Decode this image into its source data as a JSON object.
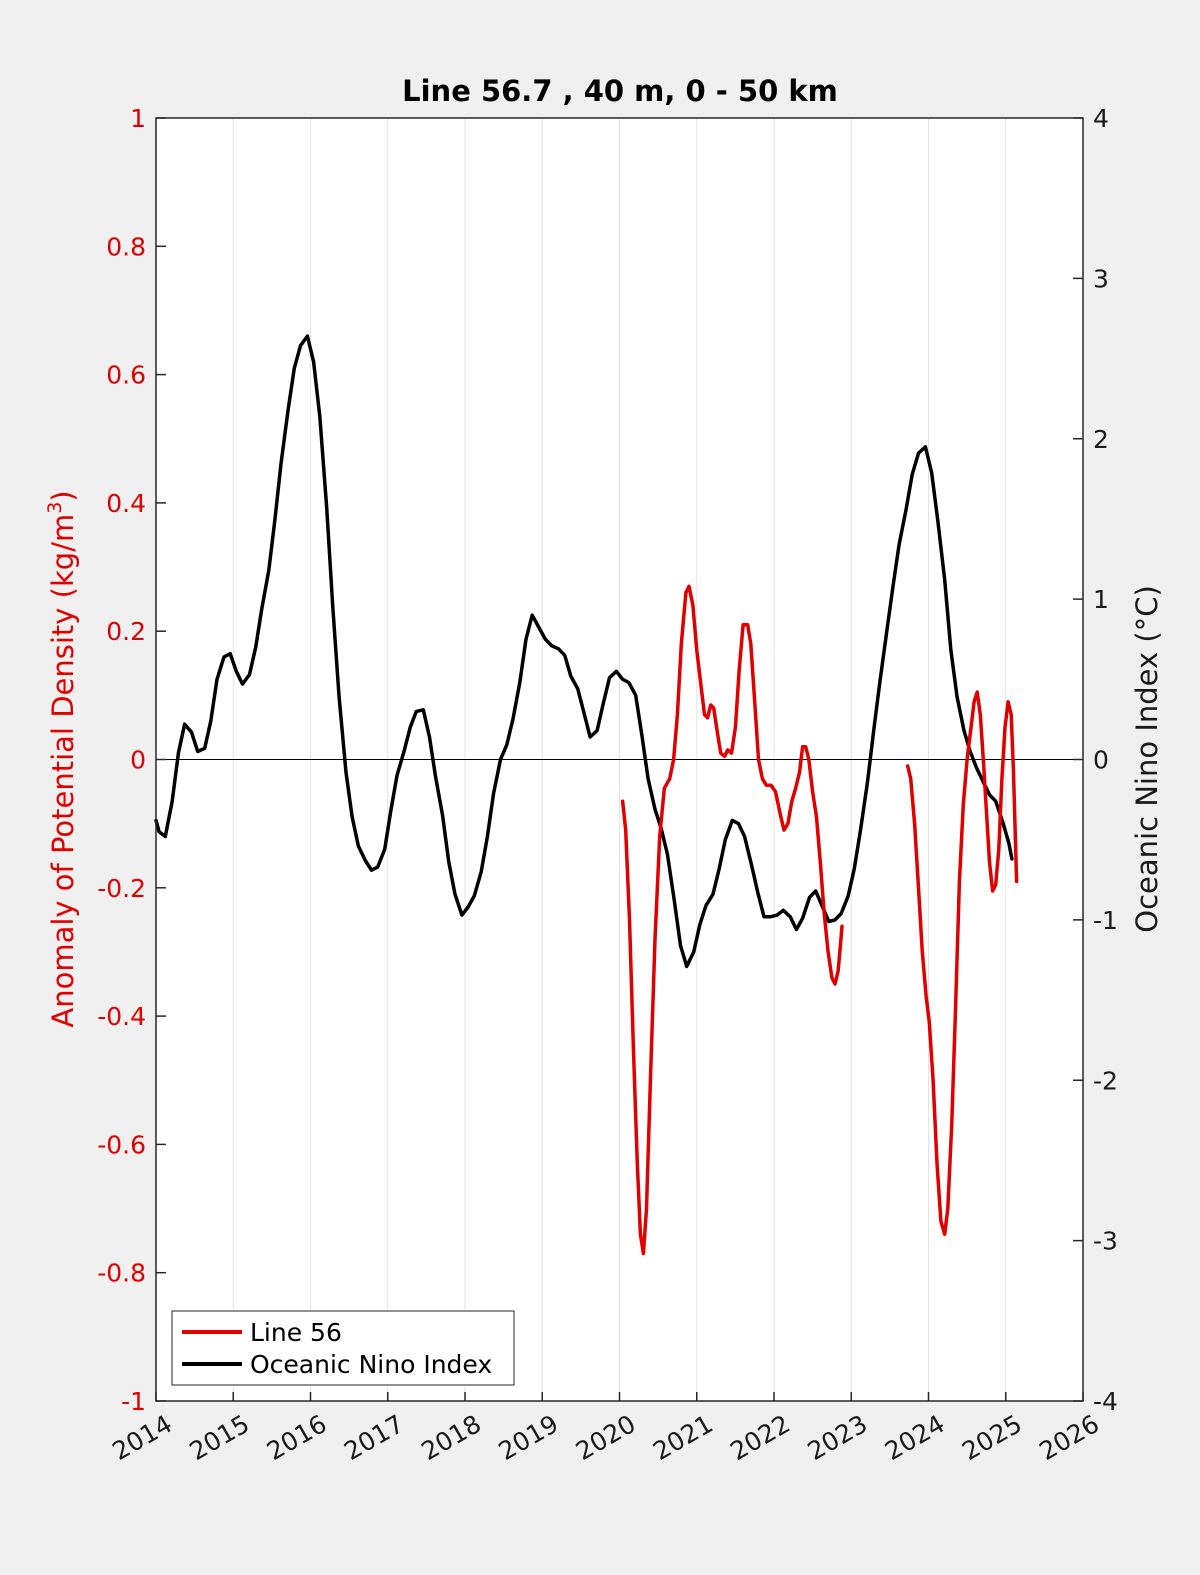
{
  "chart_data": {
    "type": "line",
    "title": "Line 56.7 , 40 m, 0 - 50 km",
    "ylabel": "Anomaly of Potential Density (kg/m",
    "ylabel_sup": "3",
    "ylabel_close": ")",
    "y2label": "Oceanic Nino Index (°C)",
    "xlim": [
      2014,
      2026
    ],
    "ylim": [
      -1,
      1
    ],
    "y2lim": [
      -4,
      4
    ],
    "grid": "vertical",
    "legend_position": "bottom-left",
    "x_ticks": [
      "2014",
      "2015",
      "2016",
      "2017",
      "2018",
      "2019",
      "2020",
      "2021",
      "2022",
      "2023",
      "2024",
      "2025",
      "2026"
    ],
    "y_ticks": [
      "-1",
      "-0.8",
      "-0.6",
      "-0.4",
      "-0.2",
      "0",
      "0.2",
      "0.4",
      "0.6",
      "0.8",
      "1"
    ],
    "y2_ticks": [
      "-4",
      "-3",
      "-2",
      "-1",
      "0",
      "1",
      "2",
      "3",
      "4"
    ],
    "colors": {
      "line56": "#e00000",
      "oni": "#000000"
    },
    "series": [
      {
        "name": "Line 56",
        "axis": "left",
        "segments": [
          [
            [
              2020.04,
              -0.065
            ],
            [
              2020.08,
              -0.11
            ],
            [
              2020.13,
              -0.25
            ],
            [
              2020.18,
              -0.45
            ],
            [
              2020.23,
              -0.63
            ],
            [
              2020.27,
              -0.74
            ],
            [
              2020.31,
              -0.77
            ],
            [
              2020.35,
              -0.7
            ],
            [
              2020.4,
              -0.5
            ],
            [
              2020.46,
              -0.28
            ],
            [
              2020.52,
              -0.12
            ],
            [
              2020.58,
              -0.045
            ],
            [
              2020.65,
              -0.03
            ],
            [
              2020.7,
              0.0
            ],
            [
              2020.75,
              0.07
            ],
            [
              2020.8,
              0.18
            ],
            [
              2020.86,
              0.26
            ],
            [
              2020.9,
              0.27
            ],
            [
              2020.95,
              0.24
            ],
            [
              2021.0,
              0.17
            ],
            [
              2021.05,
              0.12
            ],
            [
              2021.1,
              0.07
            ],
            [
              2021.14,
              0.065
            ],
            [
              2021.18,
              0.085
            ],
            [
              2021.22,
              0.08
            ],
            [
              2021.27,
              0.04
            ],
            [
              2021.31,
              0.01
            ],
            [
              2021.36,
              0.005
            ],
            [
              2021.4,
              0.015
            ],
            [
              2021.45,
              0.01
            ],
            [
              2021.5,
              0.05
            ],
            [
              2021.55,
              0.14
            ],
            [
              2021.6,
              0.21
            ],
            [
              2021.66,
              0.21
            ],
            [
              2021.7,
              0.18
            ],
            [
              2021.75,
              0.09
            ],
            [
              2021.8,
              0.0
            ],
            [
              2021.85,
              -0.03
            ],
            [
              2021.9,
              -0.04
            ],
            [
              2021.96,
              -0.04
            ],
            [
              2022.02,
              -0.05
            ],
            [
              2022.08,
              -0.085
            ],
            [
              2022.13,
              -0.11
            ],
            [
              2022.18,
              -0.1
            ],
            [
              2022.23,
              -0.065
            ],
            [
              2022.28,
              -0.045
            ],
            [
              2022.33,
              -0.02
            ],
            [
              2022.37,
              0.02
            ],
            [
              2022.41,
              0.02
            ],
            [
              2022.45,
              0.0
            ],
            [
              2022.5,
              -0.05
            ],
            [
              2022.55,
              -0.09
            ],
            [
              2022.6,
              -0.16
            ],
            [
              2022.65,
              -0.24
            ],
            [
              2022.7,
              -0.3
            ],
            [
              2022.75,
              -0.34
            ],
            [
              2022.79,
              -0.35
            ],
            [
              2022.83,
              -0.33
            ],
            [
              2022.86,
              -0.29
            ],
            [
              2022.88,
              -0.26
            ]
          ],
          [
            [
              2023.73,
              -0.01
            ],
            [
              2023.77,
              -0.03
            ],
            [
              2023.82,
              -0.1
            ],
            [
              2023.87,
              -0.2
            ],
            [
              2023.92,
              -0.3
            ],
            [
              2023.97,
              -0.37
            ],
            [
              2024.01,
              -0.41
            ],
            [
              2024.06,
              -0.5
            ],
            [
              2024.11,
              -0.63
            ],
            [
              2024.16,
              -0.72
            ],
            [
              2024.21,
              -0.74
            ],
            [
              2024.25,
              -0.7
            ],
            [
              2024.3,
              -0.57
            ],
            [
              2024.35,
              -0.39
            ],
            [
              2024.4,
              -0.19
            ],
            [
              2024.45,
              -0.07
            ],
            [
              2024.5,
              0.0
            ],
            [
              2024.55,
              0.05
            ],
            [
              2024.59,
              0.09
            ],
            [
              2024.63,
              0.105
            ],
            [
              2024.67,
              0.07
            ],
            [
              2024.71,
              0.0
            ],
            [
              2024.75,
              -0.08
            ],
            [
              2024.79,
              -0.16
            ],
            [
              2024.83,
              -0.205
            ],
            [
              2024.87,
              -0.195
            ],
            [
              2024.91,
              -0.14
            ],
            [
              2024.95,
              -0.03
            ],
            [
              2024.99,
              0.05
            ],
            [
              2025.03,
              0.09
            ],
            [
              2025.07,
              0.07
            ],
            [
              2025.1,
              -0.02
            ],
            [
              2025.14,
              -0.19
            ]
          ]
        ]
      },
      {
        "name": "Oceanic Nino Index",
        "axis": "right",
        "values": [
          [
            2014.0,
            -0.38
          ],
          [
            2014.04,
            -0.45
          ],
          [
            2014.12,
            -0.48
          ],
          [
            2014.21,
            -0.26
          ],
          [
            2014.29,
            0.04
          ],
          [
            2014.37,
            0.22
          ],
          [
            2014.46,
            0.17
          ],
          [
            2014.54,
            0.05
          ],
          [
            2014.63,
            0.07
          ],
          [
            2014.71,
            0.24
          ],
          [
            2014.79,
            0.5
          ],
          [
            2014.88,
            0.64
          ],
          [
            2014.96,
            0.66
          ],
          [
            2015.04,
            0.55
          ],
          [
            2015.12,
            0.47
          ],
          [
            2015.21,
            0.53
          ],
          [
            2015.29,
            0.7
          ],
          [
            2015.37,
            0.94
          ],
          [
            2015.46,
            1.18
          ],
          [
            2015.54,
            1.5
          ],
          [
            2015.62,
            1.85
          ],
          [
            2015.71,
            2.18
          ],
          [
            2015.79,
            2.44
          ],
          [
            2015.87,
            2.58
          ],
          [
            2015.96,
            2.64
          ],
          [
            2016.04,
            2.48
          ],
          [
            2016.12,
            2.14
          ],
          [
            2016.21,
            1.57
          ],
          [
            2016.29,
            0.94
          ],
          [
            2016.37,
            0.39
          ],
          [
            2016.46,
            -0.08
          ],
          [
            2016.54,
            -0.36
          ],
          [
            2016.62,
            -0.54
          ],
          [
            2016.71,
            -0.63
          ],
          [
            2016.79,
            -0.69
          ],
          [
            2016.87,
            -0.67
          ],
          [
            2016.96,
            -0.56
          ],
          [
            2017.04,
            -0.32
          ],
          [
            2017.12,
            -0.1
          ],
          [
            2017.21,
            0.05
          ],
          [
            2017.29,
            0.2
          ],
          [
            2017.37,
            0.3
          ],
          [
            2017.46,
            0.31
          ],
          [
            2017.54,
            0.14
          ],
          [
            2017.62,
            -0.11
          ],
          [
            2017.71,
            -0.35
          ],
          [
            2017.79,
            -0.64
          ],
          [
            2017.87,
            -0.84
          ],
          [
            2017.96,
            -0.97
          ],
          [
            2018.04,
            -0.92
          ],
          [
            2018.12,
            -0.85
          ],
          [
            2018.21,
            -0.7
          ],
          [
            2018.29,
            -0.48
          ],
          [
            2018.37,
            -0.21
          ],
          [
            2018.46,
            0.0
          ],
          [
            2018.54,
            0.09
          ],
          [
            2018.62,
            0.25
          ],
          [
            2018.71,
            0.48
          ],
          [
            2018.79,
            0.75
          ],
          [
            2018.87,
            0.9
          ],
          [
            2018.96,
            0.82
          ],
          [
            2019.04,
            0.75
          ],
          [
            2019.12,
            0.71
          ],
          [
            2019.21,
            0.69
          ],
          [
            2019.29,
            0.65
          ],
          [
            2019.37,
            0.52
          ],
          [
            2019.46,
            0.44
          ],
          [
            2019.54,
            0.29
          ],
          [
            2019.62,
            0.14
          ],
          [
            2019.71,
            0.18
          ],
          [
            2019.79,
            0.35
          ],
          [
            2019.87,
            0.51
          ],
          [
            2019.96,
            0.55
          ],
          [
            2020.04,
            0.5
          ],
          [
            2020.12,
            0.48
          ],
          [
            2020.21,
            0.4
          ],
          [
            2020.29,
            0.15
          ],
          [
            2020.37,
            -0.12
          ],
          [
            2020.46,
            -0.31
          ],
          [
            2020.54,
            -0.43
          ],
          [
            2020.62,
            -0.59
          ],
          [
            2020.71,
            -0.88
          ],
          [
            2020.79,
            -1.16
          ],
          [
            2020.87,
            -1.29
          ],
          [
            2020.96,
            -1.2
          ],
          [
            2021.04,
            -1.03
          ],
          [
            2021.12,
            -0.91
          ],
          [
            2021.21,
            -0.84
          ],
          [
            2021.29,
            -0.68
          ],
          [
            2021.37,
            -0.5
          ],
          [
            2021.46,
            -0.38
          ],
          [
            2021.54,
            -0.4
          ],
          [
            2021.62,
            -0.48
          ],
          [
            2021.71,
            -0.66
          ],
          [
            2021.79,
            -0.83
          ],
          [
            2021.87,
            -0.98
          ],
          [
            2021.96,
            -0.98
          ],
          [
            2022.04,
            -0.97
          ],
          [
            2022.12,
            -0.94
          ],
          [
            2022.21,
            -0.98
          ],
          [
            2022.29,
            -1.06
          ],
          [
            2022.37,
            -0.99
          ],
          [
            2022.46,
            -0.86
          ],
          [
            2022.54,
            -0.82
          ],
          [
            2022.62,
            -0.91
          ],
          [
            2022.71,
            -1.01
          ],
          [
            2022.79,
            -1.0
          ],
          [
            2022.87,
            -0.96
          ],
          [
            2022.96,
            -0.85
          ],
          [
            2023.04,
            -0.68
          ],
          [
            2023.12,
            -0.44
          ],
          [
            2023.21,
            -0.14
          ],
          [
            2023.29,
            0.18
          ],
          [
            2023.37,
            0.48
          ],
          [
            2023.46,
            0.8
          ],
          [
            2023.54,
            1.08
          ],
          [
            2023.62,
            1.34
          ],
          [
            2023.71,
            1.56
          ],
          [
            2023.79,
            1.78
          ],
          [
            2023.87,
            1.91
          ],
          [
            2023.96,
            1.95
          ],
          [
            2024.04,
            1.79
          ],
          [
            2024.12,
            1.49
          ],
          [
            2024.21,
            1.12
          ],
          [
            2024.29,
            0.68
          ],
          [
            2024.37,
            0.39
          ],
          [
            2024.46,
            0.18
          ],
          [
            2024.54,
            0.05
          ],
          [
            2024.62,
            -0.05
          ],
          [
            2024.71,
            -0.14
          ],
          [
            2024.79,
            -0.22
          ],
          [
            2024.87,
            -0.26
          ],
          [
            2024.96,
            -0.39
          ],
          [
            2025.04,
            -0.52
          ],
          [
            2025.08,
            -0.62
          ]
        ]
      }
    ]
  }
}
